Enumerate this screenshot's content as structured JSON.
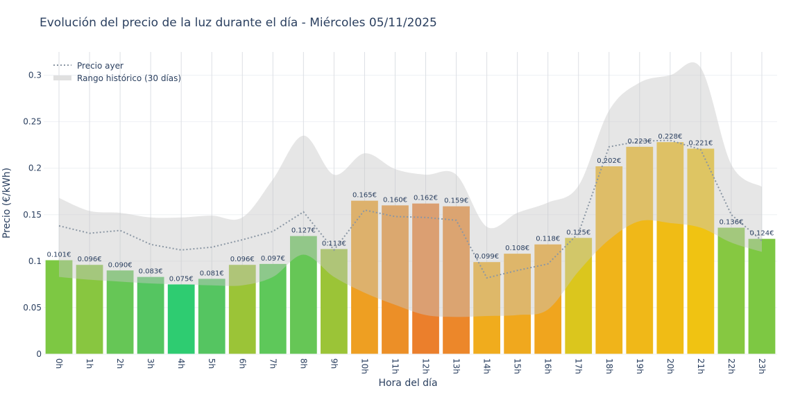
{
  "chart_data": {
    "type": "bar",
    "title": "Evolución del precio de la luz durante el día - Miércoles 05/11/2025",
    "xlabel": "Hora del día",
    "ylabel": "Precio (€/kWh)",
    "ylim": [
      0,
      0.325
    ],
    "yticks": [
      0,
      0.05,
      0.1,
      0.15,
      0.2,
      0.25,
      0.3
    ],
    "ytick_labels": [
      "0",
      "0.05",
      "0.1",
      "0.15",
      "0.2",
      "0.25",
      "0.3"
    ],
    "grid": true,
    "legend_position": "top-left",
    "categories": [
      "0h",
      "1h",
      "2h",
      "3h",
      "4h",
      "5h",
      "6h",
      "7h",
      "8h",
      "9h",
      "10h",
      "11h",
      "12h",
      "13h",
      "14h",
      "15h",
      "16h",
      "17h",
      "18h",
      "19h",
      "20h",
      "21h",
      "22h",
      "23h"
    ],
    "values": [
      0.101,
      0.096,
      0.09,
      0.083,
      0.075,
      0.081,
      0.096,
      0.097,
      0.127,
      0.113,
      0.165,
      0.16,
      0.162,
      0.159,
      0.099,
      0.108,
      0.118,
      0.125,
      0.202,
      0.223,
      0.228,
      0.221,
      0.136,
      0.124
    ],
    "labels": [
      "0.101€",
      "0.096€",
      "0.090€",
      "0.083€",
      "0.075€",
      "0.081€",
      "0.096€",
      "0.097€",
      "0.127€",
      "0.113€",
      "0.165€",
      "0.160€",
      "0.162€",
      "0.159€",
      "0.099€",
      "0.108€",
      "0.118€",
      "0.125€",
      "0.202€",
      "0.223€",
      "0.228€",
      "0.221€",
      "0.136€",
      "0.124€"
    ],
    "bar_colors": [
      "#7dc843",
      "#88c640",
      "#66c656",
      "#55c561",
      "#2ecc71",
      "#55c561",
      "#9bc437",
      "#5ec85a",
      "#66c656",
      "#9bc437",
      "#ee9f22",
      "#ec8f27",
      "#eb7f2c",
      "#ec872a",
      "#f0ac1d",
      "#f0a81e",
      "#f0a51e",
      "#dbc61d",
      "#f0b41a",
      "#f0b818",
      "#f0bc15",
      "#f0c312",
      "#86c841",
      "#7dc843"
    ],
    "series": [
      {
        "name": "Precio ayer",
        "type": "line",
        "style": "dotted",
        "color": "#8a96a3",
        "values": [
          0.138,
          0.13,
          0.133,
          0.118,
          0.112,
          0.115,
          0.123,
          0.132,
          0.153,
          0.112,
          0.155,
          0.148,
          0.147,
          0.144,
          0.082,
          0.09,
          0.097,
          0.13,
          0.223,
          0.229,
          0.23,
          0.22,
          0.15,
          0.122
        ]
      },
      {
        "name": "Rango histórico (30 días)",
        "type": "band",
        "color": "#d3d3d3",
        "upper": [
          0.168,
          0.154,
          0.152,
          0.147,
          0.147,
          0.149,
          0.147,
          0.188,
          0.235,
          0.193,
          0.216,
          0.199,
          0.193,
          0.193,
          0.137,
          0.152,
          0.163,
          0.181,
          0.262,
          0.292,
          0.3,
          0.308,
          0.204,
          0.18
        ],
        "lower": [
          0.083,
          0.08,
          0.078,
          0.076,
          0.075,
          0.074,
          0.074,
          0.083,
          0.107,
          0.083,
          0.066,
          0.053,
          0.042,
          0.04,
          0.041,
          0.042,
          0.048,
          0.089,
          0.123,
          0.143,
          0.141,
          0.136,
          0.12,
          0.11
        ]
      }
    ]
  }
}
